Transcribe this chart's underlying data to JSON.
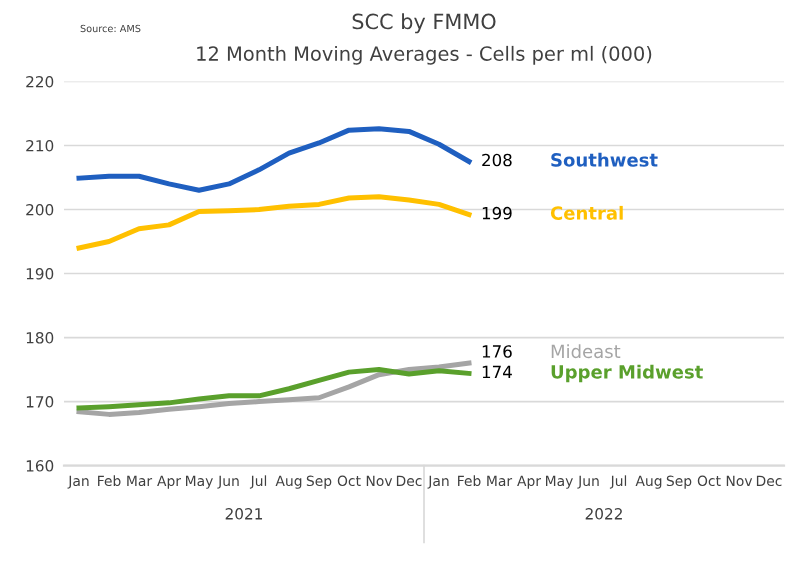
{
  "chart_data": {
    "type": "line",
    "title": "SCC by FMMO",
    "subtitle": "12 Month Moving Averages - Cells per ml (000)",
    "categories": [
      "Jan",
      "Feb",
      "Mar",
      "Apr",
      "May",
      "Jun",
      "Jul",
      "Aug",
      "Sep",
      "Oct",
      "Nov",
      "Dec",
      "Jan",
      "Feb",
      "Mar",
      "Apr",
      "May",
      "Jun",
      "Jul",
      "Aug",
      "Sep",
      "Oct",
      "Nov",
      "Dec"
    ],
    "series": [
      {
        "name": "Southwest",
        "color": "#1f5fc0",
        "values": [
          204.9,
          205.2,
          205.2,
          204,
          203,
          204,
          206.2,
          208.8,
          210.4,
          212.4,
          212.6,
          212.2,
          210.2,
          207.5,
          null,
          null,
          null,
          null,
          null,
          null,
          null,
          null,
          null,
          null
        ],
        "value_labels": [
          null,
          null,
          null,
          null,
          null,
          null,
          null,
          null,
          null,
          null,
          null,
          null,
          null,
          "208",
          null,
          null,
          null,
          null,
          null,
          null,
          null,
          null,
          null,
          null
        ]
      },
      {
        "name": "Central",
        "color": "#ffc000",
        "values": [
          194,
          195,
          197,
          197.6,
          199.7,
          199.8,
          200,
          200.5,
          200.8,
          201.8,
          202,
          201.5,
          200.8,
          199.2,
          null,
          null,
          null,
          null,
          null,
          null,
          null,
          null,
          null,
          null
        ],
        "value_labels": [
          null,
          null,
          null,
          null,
          null,
          null,
          null,
          null,
          null,
          null,
          null,
          null,
          null,
          "199",
          null,
          null,
          null,
          null,
          null,
          null,
          null,
          null,
          null,
          null
        ]
      },
      {
        "name": "Mideast",
        "color": "#a5a5a5",
        "values": [
          168.4,
          168,
          168.3,
          168.8,
          169.2,
          169.7,
          170,
          170.3,
          170.6,
          172.3,
          174.2,
          175,
          175.4,
          176,
          null,
          null,
          null,
          null,
          null,
          null,
          null,
          null,
          null,
          null
        ],
        "value_labels": [
          null,
          null,
          null,
          null,
          null,
          null,
          null,
          null,
          null,
          null,
          null,
          null,
          null,
          "176",
          null,
          null,
          null,
          null,
          null,
          null,
          null,
          null,
          null,
          null
        ]
      },
      {
        "name": "Upper Midwest",
        "color": "#5aa02c",
        "values": [
          169,
          169.2,
          169.5,
          169.8,
          170.4,
          170.9,
          170.9,
          172,
          173.3,
          174.6,
          175,
          174.3,
          174.8,
          174.4,
          null,
          null,
          null,
          null,
          null,
          null,
          null,
          null,
          null,
          null
        ],
        "value_labels": [
          null,
          null,
          null,
          null,
          null,
          null,
          null,
          null,
          null,
          null,
          null,
          null,
          null,
          "174",
          null,
          null,
          null,
          null,
          null,
          null,
          null,
          null,
          null,
          null
        ]
      }
    ],
    "ylim": [
      160,
      220
    ],
    "yticks": [
      160,
      170,
      180,
      190,
      200,
      210,
      220
    ],
    "grid": "y",
    "legend": false,
    "marker": "none",
    "line_style": "solid",
    "annotations": [
      "Source: AMS",
      "2021",
      "2022"
    ]
  }
}
